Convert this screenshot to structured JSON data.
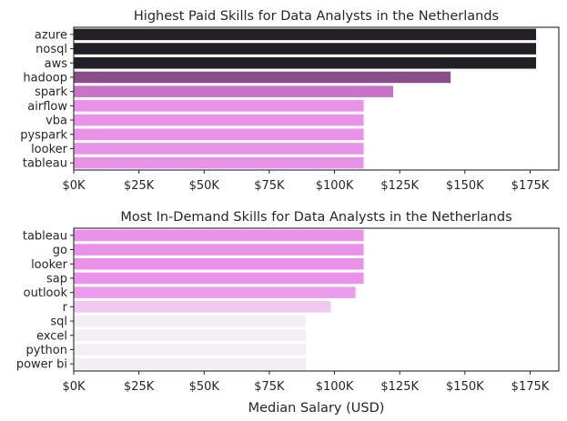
{
  "chart_data": [
    {
      "type": "bar",
      "orientation": "horizontal",
      "title": "Highest Paid Skills for Data Analysts in the Netherlands",
      "xlabel": "",
      "ylabel": "",
      "xlim": [
        0,
        186000
      ],
      "x_ticks": [
        0,
        25000,
        50000,
        75000,
        100000,
        125000,
        150000,
        175000
      ],
      "x_tick_labels": [
        "$0K",
        "$25K",
        "$50K",
        "$75K",
        "$100K",
        "$125K",
        "$150K",
        "$175K"
      ],
      "categories": [
        "azure",
        "nosql",
        "aws",
        "hadoop",
        "spark",
        "airflow",
        "vba",
        "pyspark",
        "looker",
        "tableau"
      ],
      "values": [
        177283,
        177283,
        177283,
        144500,
        122500,
        111175,
        111175,
        111175,
        111175,
        111175
      ],
      "colors": [
        "#231f26",
        "#231f26",
        "#231f26",
        "#8a4f8a",
        "#c872c8",
        "#e893e8",
        "#e893e8",
        "#e893e8",
        "#e893e8",
        "#e893e8"
      ]
    },
    {
      "type": "bar",
      "orientation": "horizontal",
      "title": "Most In-Demand Skills for Data Analysts in the Netherlands",
      "xlabel": "Median Salary (USD)",
      "ylabel": "",
      "xlim": [
        0,
        186000
      ],
      "x_ticks": [
        0,
        25000,
        50000,
        75000,
        100000,
        125000,
        150000,
        175000
      ],
      "x_tick_labels": [
        "$0K",
        "$25K",
        "$50K",
        "$75K",
        "$100K",
        "$125K",
        "$150K",
        "$175K"
      ],
      "categories": [
        "tableau",
        "go",
        "looker",
        "sap",
        "outlook",
        "r",
        "sql",
        "excel",
        "python",
        "power bi"
      ],
      "values": [
        111175,
        111175,
        111175,
        111175,
        108000,
        98500,
        89100,
        89100,
        89100,
        89100
      ],
      "colors": [
        "#e893e8",
        "#e893e8",
        "#e893e8",
        "#e893e8",
        "#ec9cec",
        "#f0c8f0",
        "#f3eef3",
        "#f3eef3",
        "#f3eef3",
        "#f3eef3"
      ]
    }
  ]
}
